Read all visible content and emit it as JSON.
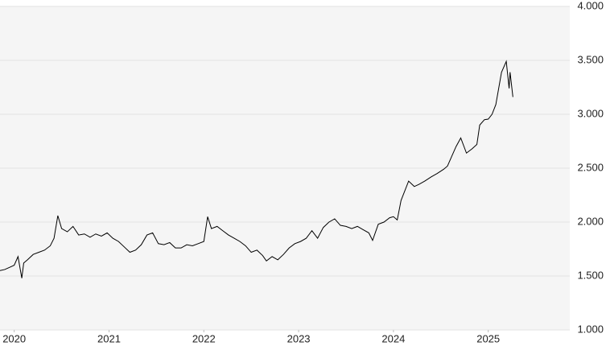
{
  "chart_data": {
    "type": "line",
    "color": "#000000",
    "grid": true,
    "x": [
      2019.85,
      2019.9,
      2019.95,
      2020.0,
      2020.04,
      2020.08,
      2020.1,
      2020.14,
      2020.2,
      2020.26,
      2020.32,
      2020.38,
      2020.42,
      2020.46,
      2020.5,
      2020.56,
      2020.62,
      2020.68,
      2020.74,
      2020.8,
      2020.86,
      2020.92,
      2020.98,
      2021.04,
      2021.1,
      2021.16,
      2021.22,
      2021.28,
      2021.34,
      2021.4,
      2021.46,
      2021.52,
      2021.58,
      2021.64,
      2021.7,
      2021.76,
      2021.82,
      2021.88,
      2021.94,
      2022.0,
      2022.04,
      2022.08,
      2022.14,
      2022.2,
      2022.26,
      2022.32,
      2022.38,
      2022.44,
      2022.5,
      2022.56,
      2022.62,
      2022.66,
      2022.72,
      2022.78,
      2022.84,
      2022.9,
      2022.96,
      2023.02,
      2023.08,
      2023.14,
      2023.2,
      2023.26,
      2023.32,
      2023.38,
      2023.44,
      2023.5,
      2023.56,
      2023.62,
      2023.68,
      2023.74,
      2023.78,
      2023.84,
      2023.9,
      2023.96,
      2024.0,
      2024.04,
      2024.08,
      2024.16,
      2024.22,
      2024.27,
      2024.33,
      2024.4,
      2024.46,
      2024.53,
      2024.57,
      2024.61,
      2024.66,
      2024.71,
      2024.77,
      2024.83,
      2024.88,
      2024.91,
      2024.96,
      2025.0,
      2025.04,
      2025.08,
      2025.14,
      2025.19,
      2025.22,
      2025.23,
      2025.26
    ],
    "values": [
      1550,
      1560,
      1580,
      1600,
      1680,
      1480,
      1620,
      1650,
      1700,
      1720,
      1740,
      1780,
      1850,
      2060,
      1940,
      1910,
      1960,
      1880,
      1890,
      1860,
      1890,
      1870,
      1900,
      1850,
      1820,
      1770,
      1720,
      1740,
      1790,
      1880,
      1900,
      1800,
      1790,
      1810,
      1760,
      1760,
      1790,
      1780,
      1800,
      1820,
      2050,
      1940,
      1960,
      1920,
      1880,
      1850,
      1820,
      1780,
      1720,
      1740,
      1690,
      1640,
      1680,
      1650,
      1700,
      1760,
      1800,
      1820,
      1850,
      1920,
      1850,
      1950,
      2000,
      2030,
      1970,
      1960,
      1940,
      1960,
      1930,
      1900,
      1830,
      1980,
      2000,
      2040,
      2050,
      2020,
      2200,
      2380,
      2330,
      2350,
      2380,
      2420,
      2450,
      2490,
      2520,
      2600,
      2700,
      2780,
      2640,
      2680,
      2720,
      2900,
      2950,
      2955,
      3000,
      3090,
      3390,
      3490,
      3240,
      3390,
      3160
    ],
    "xlim": [
      2019.85,
      2025.86
    ],
    "xticks": [
      2020,
      2021,
      2022,
      2023,
      2024,
      2025
    ],
    "ylim": [
      1000,
      4000
    ],
    "yticks": [
      {
        "value": 1000,
        "label": "1.000"
      },
      {
        "value": 1500,
        "label": "1.500"
      },
      {
        "value": 2000,
        "label": "2.000"
      },
      {
        "value": 2500,
        "label": "2.500"
      },
      {
        "value": 3000,
        "label": "3.000"
      },
      {
        "value": 3500,
        "label": "3.500"
      },
      {
        "value": 4000,
        "label": "4.000"
      }
    ]
  }
}
